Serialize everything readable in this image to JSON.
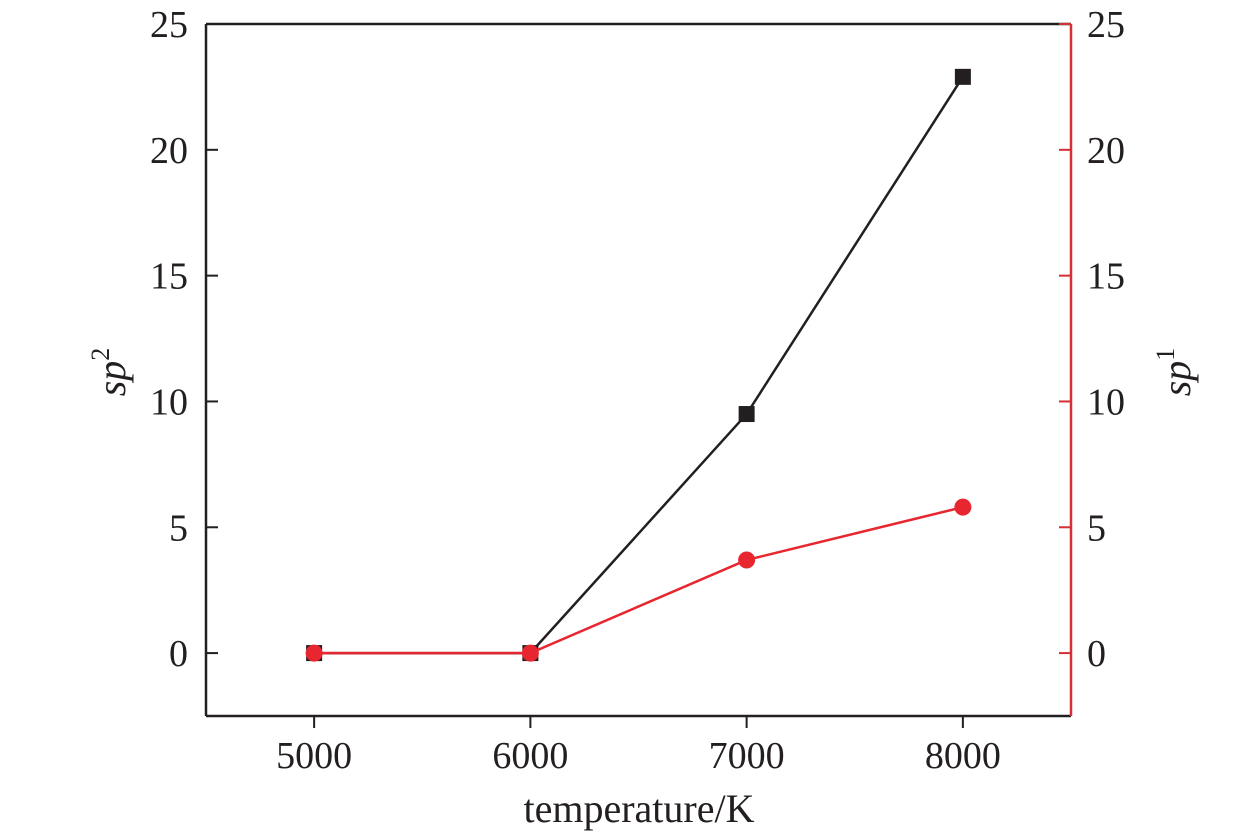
{
  "chart_data": {
    "type": "line",
    "xlabel": "temperature/K",
    "ylabel_left": {
      "base": "sp",
      "sup": "2"
    },
    "ylabel_right": {
      "base": "sp",
      "sup": "1"
    },
    "xlim": [
      4500,
      8500
    ],
    "ylim": [
      -2.5,
      25
    ],
    "x_ticks": [
      5000,
      6000,
      7000,
      8000
    ],
    "y_ticks": [
      0,
      5,
      10,
      15,
      20,
      25
    ],
    "grid": false,
    "legend": "none",
    "series": [
      {
        "axis": "left",
        "color": "#231f20",
        "marker": "square",
        "x": [
          5000,
          6000,
          7000,
          8000
        ],
        "y": [
          0,
          0,
          9.5,
          22.9
        ]
      },
      {
        "axis": "right",
        "color": "#e8262f",
        "marker": "circle",
        "x": [
          5000,
          6000,
          7000,
          8000
        ],
        "y": [
          0,
          0,
          3.7,
          5.8
        ]
      }
    ],
    "colors": {
      "left_axis": "#231f20",
      "right_axis": "#d62f35"
    }
  }
}
